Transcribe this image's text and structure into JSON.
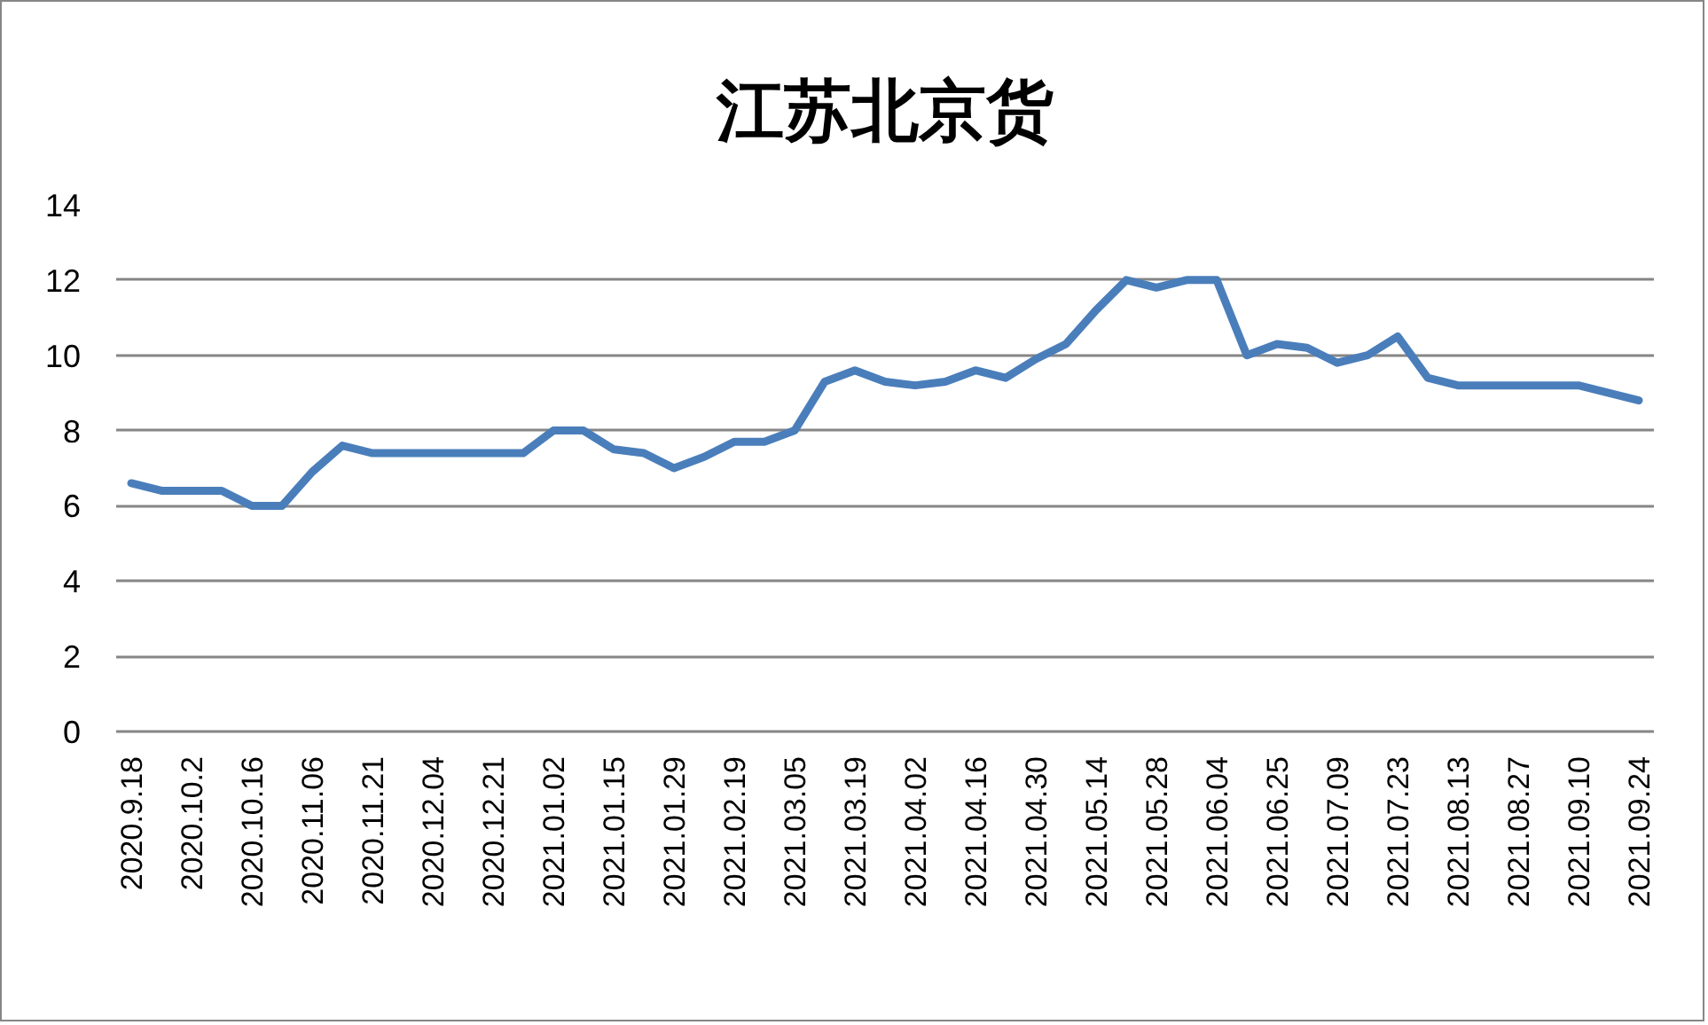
{
  "chart_data": {
    "type": "line",
    "title": "江苏北京货",
    "categories": [
      "2020.9.18",
      null,
      "2020.10.2",
      null,
      "2020.10.16",
      null,
      "2020.11.06",
      null,
      "2020.11.21",
      null,
      "2020.12.04",
      null,
      "2020.12.21",
      null,
      "2021.01.02",
      null,
      "2021.01.15",
      null,
      "2021.01.29",
      null,
      "2021.02.19",
      null,
      "2021.03.05",
      null,
      "2021.03.19",
      null,
      "2021.04.02",
      null,
      "2021.04.16",
      null,
      "2021.04.30",
      null,
      "2021.05.14",
      null,
      "2021.05.28",
      null,
      "2021.06.04",
      null,
      "2021.06.25",
      null,
      "2021.07.09",
      null,
      "2021.07.23",
      null,
      "2021.08.13",
      null,
      "2021.08.27",
      null,
      "2021.09.10",
      null,
      "2021.09.24"
    ],
    "values": [
      6.6,
      6.4,
      6.4,
      6.4,
      6.0,
      6.0,
      6.9,
      7.6,
      7.4,
      7.4,
      7.4,
      7.4,
      7.4,
      7.4,
      8.0,
      8.0,
      7.5,
      7.4,
      7.0,
      7.3,
      7.7,
      7.7,
      8.0,
      9.3,
      9.6,
      9.3,
      9.2,
      9.3,
      9.6,
      9.4,
      9.9,
      10.3,
      11.2,
      12.0,
      11.8,
      12.0,
      12.0,
      10.0,
      10.3,
      10.2,
      9.8,
      10.0,
      10.5,
      9.4,
      9.2,
      9.2,
      9.2,
      9.2,
      9.2,
      9.0,
      8.8
    ],
    "color": "#4a7ebb",
    "line_style": "solid",
    "ylim": [
      0,
      14
    ],
    "yticks": [
      0,
      2,
      4,
      6,
      8,
      10,
      12,
      14
    ],
    "grid": "y"
  }
}
